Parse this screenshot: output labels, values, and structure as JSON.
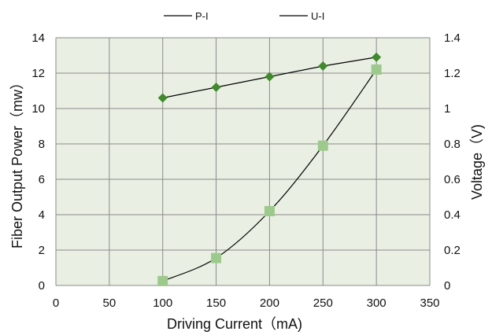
{
  "chart_data": {
    "type": "scatter",
    "xlabel": "Driving Current（mA)",
    "ylabel_left": "Fiber Output Power（mw）",
    "ylabel_right": "Voltage（V)",
    "xlim": [
      0,
      350
    ],
    "ylim_left": [
      0,
      14
    ],
    "ylim_right": [
      0,
      1.4
    ],
    "x_ticks": [
      "0",
      "50",
      "100",
      "150",
      "200",
      "250",
      "300",
      "350"
    ],
    "y_left_ticks": [
      "0",
      "2",
      "4",
      "6",
      "8",
      "10",
      "12",
      "14"
    ],
    "y_right_ticks": [
      "0",
      "0.2",
      "0.4",
      "0.6",
      "0.8",
      "1",
      "1.2",
      "1.4"
    ],
    "grid": true,
    "legend_position": "top-center",
    "series": [
      {
        "name": "P-I",
        "axis": "left",
        "marker": "square",
        "marker_color": "#9dc98d",
        "line_color": "#000000",
        "x": [
          100,
          150,
          200,
          250,
          300
        ],
        "y": [
          0.25,
          1.55,
          4.2,
          7.9,
          12.2
        ]
      },
      {
        "name": "U-I",
        "axis": "right",
        "marker": "diamond",
        "marker_color": "#3f8a2a",
        "line_color": "#000000",
        "x": [
          100,
          150,
          200,
          250,
          300
        ],
        "y": [
          1.06,
          1.12,
          1.18,
          1.24,
          1.29
        ]
      }
    ],
    "plot_background": "#e9f0e3",
    "grid_color": "#8a8a8a"
  }
}
